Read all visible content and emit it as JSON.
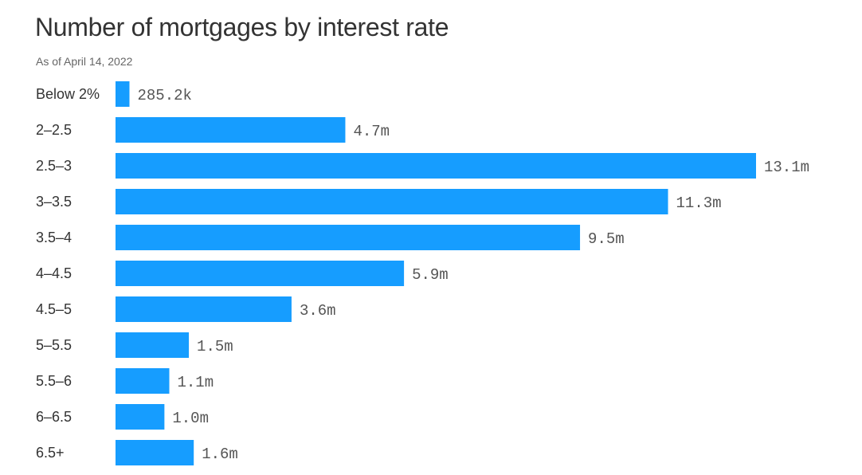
{
  "header": {
    "title": "Number of mortgages by interest rate",
    "subtitle": "As of April 14, 2022"
  },
  "colors": {
    "bar": "#169dff",
    "text": "#333333",
    "value_text": "#555555"
  },
  "chart_data": {
    "type": "bar",
    "orientation": "horizontal",
    "title": "Number of mortgages by interest rate",
    "subtitle": "As of April 14, 2022",
    "categories": [
      "Below 2%",
      "2–2.5",
      "2.5–3",
      "3–3.5",
      "3.5–4",
      "4–4.5",
      "4.5–5",
      "5–5.5",
      "5.5–6",
      "6–6.5",
      "6.5+"
    ],
    "values": [
      0.2852,
      4.7,
      13.1,
      11.3,
      9.5,
      5.9,
      3.6,
      1.5,
      1.1,
      1.0,
      1.6
    ],
    "value_unit": "million",
    "value_labels": [
      "285.2k",
      "4.7m",
      "13.1m",
      "11.3m",
      "9.5m",
      "5.9m",
      "3.6m",
      "1.5m",
      "1.1m",
      "1.0m",
      "1.6m"
    ],
    "xlim": [
      0,
      13.1
    ],
    "grid": false,
    "legend": "none"
  }
}
